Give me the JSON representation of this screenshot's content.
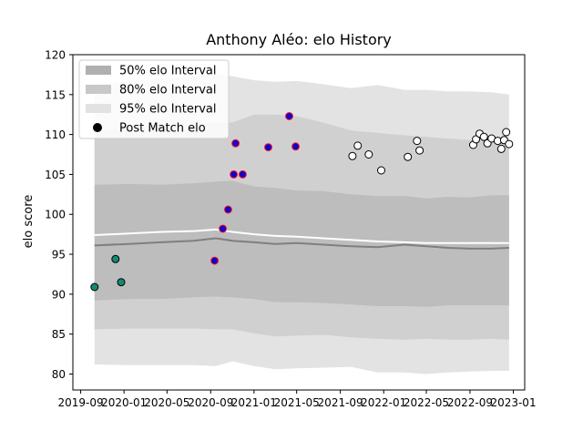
{
  "chart_data": {
    "type": "scatter",
    "title": "Anthony Aléo: elo History",
    "xlabel": "",
    "ylabel": "elo score",
    "x_tick_labels": [
      "2019-09",
      "2020-01",
      "2020-05",
      "2020-09",
      "2021-01",
      "2021-05",
      "2021-09",
      "2022-01",
      "2022-05",
      "2022-09",
      "2023-01"
    ],
    "x_ticks": [
      "2019-09-01",
      "2020-01-01",
      "2020-05-01",
      "2020-09-01",
      "2021-01-01",
      "2021-05-01",
      "2021-09-01",
      "2022-01-01",
      "2022-05-01",
      "2022-09-01",
      "2023-01-01"
    ],
    "xlim": [
      "2019-08-10",
      "2023-02-02"
    ],
    "ylim": [
      78,
      120
    ],
    "y_ticks": [
      80,
      85,
      90,
      95,
      100,
      105,
      110,
      115,
      120
    ],
    "grid": false,
    "legend": {
      "position": "upper-left",
      "entries": [
        {
          "label": "50% elo Interval",
          "color": "#b0b0b0"
        },
        {
          "label": "80% elo Interval",
          "color": "#c8c8c8"
        },
        {
          "label": "95% elo Interval",
          "color": "#e2e2e2"
        },
        {
          "label": "Post Match elo",
          "color": "#000000"
        }
      ]
    },
    "bands_x": [
      "2019-10-10",
      "2020-01-15",
      "2020-04-15",
      "2020-07-15",
      "2020-09-15",
      "2020-11-01",
      "2021-01-01",
      "2021-03-01",
      "2021-05-01",
      "2021-07-15",
      "2021-10-01",
      "2021-12-15",
      "2022-03-01",
      "2022-05-01",
      "2022-07-01",
      "2022-09-01",
      "2022-11-01",
      "2022-12-20"
    ],
    "interval_95": {
      "upper": [
        116.2,
        116.7,
        117.0,
        117.3,
        117.6,
        117.3,
        116.8,
        116.6,
        116.7,
        116.3,
        115.8,
        116.2,
        115.6,
        115.6,
        115.4,
        115.4,
        115.3,
        115.0
      ],
      "lower": [
        81.2,
        81.1,
        81.1,
        81.1,
        81.0,
        81.6,
        81.0,
        80.6,
        80.7,
        80.8,
        80.9,
        80.2,
        80.2,
        80.0,
        80.2,
        80.3,
        80.4,
        80.4
      ]
    },
    "interval_80": {
      "upper": [
        110.4,
        110.8,
        111.1,
        111.3,
        111.5,
        111.5,
        112.5,
        112.5,
        112.3,
        111.5,
        110.5,
        110.2,
        109.9,
        109.7,
        109.5,
        109.3,
        109.2,
        109.0
      ],
      "lower": [
        85.6,
        85.7,
        85.7,
        85.7,
        85.6,
        85.6,
        85.1,
        84.7,
        84.8,
        84.9,
        84.6,
        84.4,
        84.3,
        84.4,
        84.3,
        84.3,
        84.4,
        84.3
      ]
    },
    "interval_50": {
      "upper": [
        103.7,
        103.8,
        103.7,
        103.9,
        104.1,
        104.2,
        103.5,
        103.3,
        103.0,
        102.9,
        102.5,
        102.3,
        102.3,
        102.0,
        102.2,
        102.1,
        102.4,
        102.4
      ]
    },
    "interval_50_lower": [
      89.2,
      89.4,
      89.4,
      89.6,
      89.7,
      89.6,
      89.4,
      89.0,
      89.0,
      88.9,
      88.7,
      88.5,
      88.5,
      88.4,
      88.6,
      88.6,
      88.6,
      88.6
    ],
    "mean_line": [
      97.4,
      97.6,
      97.8,
      97.9,
      98.1,
      97.8,
      97.5,
      97.3,
      97.2,
      97.0,
      96.8,
      96.6,
      96.5,
      96.4,
      96.4,
      96.4,
      96.4,
      96.4
    ],
    "median_line": [
      96.1,
      96.3,
      96.5,
      96.7,
      97.0,
      96.7,
      96.5,
      96.3,
      96.4,
      96.2,
      96.0,
      95.9,
      96.2,
      96.0,
      95.8,
      95.7,
      95.7,
      95.8
    ],
    "series": [
      {
        "marker_fill": "#138a72",
        "marker_edge": "#000000",
        "points": [
          {
            "x": "2019-10-10",
            "y": 90.9
          },
          {
            "x": "2019-12-08",
            "y": 94.4
          },
          {
            "x": "2019-12-24",
            "y": 91.5
          }
        ]
      },
      {
        "marker_fill": "#1400c8",
        "marker_edge": "#ff2020",
        "points": [
          {
            "x": "2020-09-12",
            "y": 94.2
          },
          {
            "x": "2020-10-05",
            "y": 98.2
          },
          {
            "x": "2020-10-20",
            "y": 100.6
          },
          {
            "x": "2020-11-05",
            "y": 105.0
          },
          {
            "x": "2020-11-10",
            "y": 108.9
          },
          {
            "x": "2020-11-30",
            "y": 105.0
          },
          {
            "x": "2021-02-10",
            "y": 108.4
          },
          {
            "x": "2021-04-10",
            "y": 112.3
          },
          {
            "x": "2021-04-28",
            "y": 108.5
          }
        ]
      },
      {
        "marker_fill": "#ffffff",
        "marker_edge": "#000000",
        "points": [
          {
            "x": "2021-10-05",
            "y": 107.3
          },
          {
            "x": "2021-10-20",
            "y": 108.6
          },
          {
            "x": "2021-11-20",
            "y": 107.5
          },
          {
            "x": "2021-12-25",
            "y": 105.5
          },
          {
            "x": "2022-03-10",
            "y": 107.2
          },
          {
            "x": "2022-04-05",
            "y": 109.2
          },
          {
            "x": "2022-04-12",
            "y": 108.0
          },
          {
            "x": "2022-09-10",
            "y": 108.7
          },
          {
            "x": "2022-09-18",
            "y": 109.4
          },
          {
            "x": "2022-09-28",
            "y": 110.1
          },
          {
            "x": "2022-10-10",
            "y": 109.7
          },
          {
            "x": "2022-10-20",
            "y": 108.9
          },
          {
            "x": "2022-11-01",
            "y": 109.5
          },
          {
            "x": "2022-11-18",
            "y": 109.2
          },
          {
            "x": "2022-11-28",
            "y": 108.2
          },
          {
            "x": "2022-12-06",
            "y": 109.3
          },
          {
            "x": "2022-12-12",
            "y": 110.3
          },
          {
            "x": "2022-12-20",
            "y": 108.8
          }
        ]
      }
    ]
  }
}
